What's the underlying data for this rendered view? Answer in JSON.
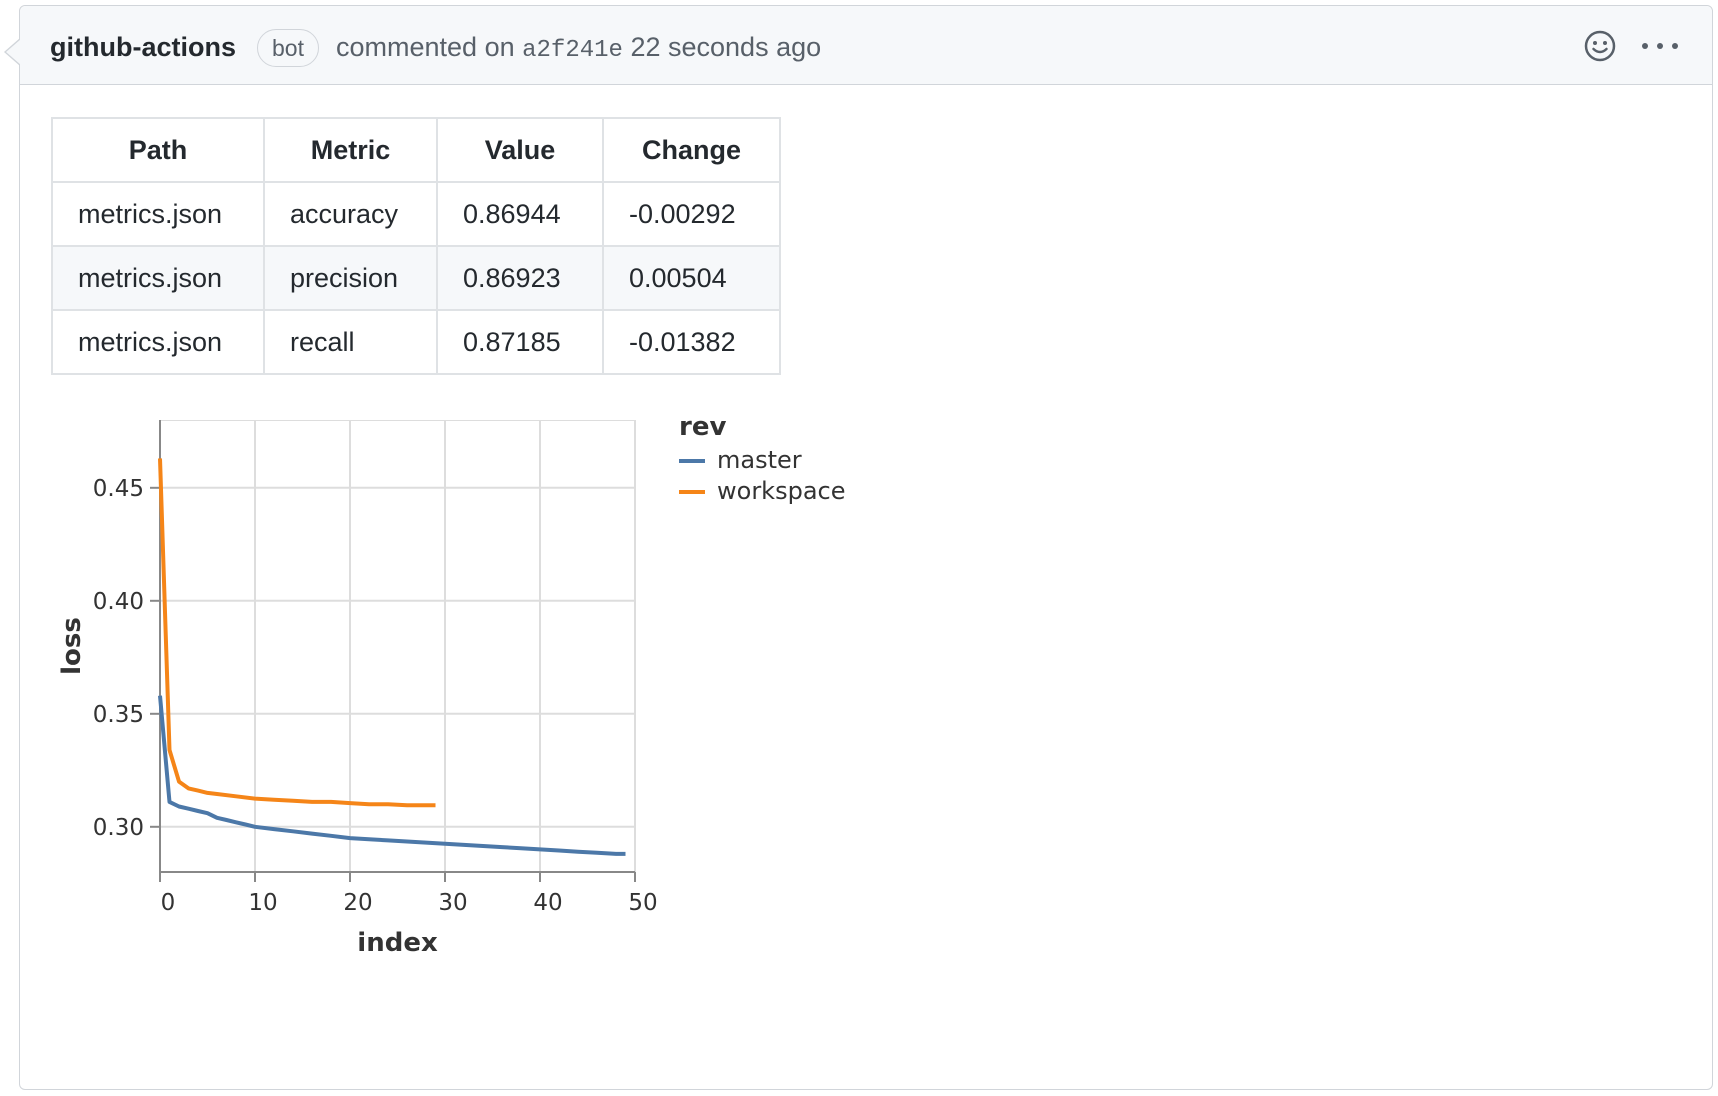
{
  "comment": {
    "author": "github-actions",
    "badge": "bot",
    "action_text": "commented on",
    "commit_sha": "a2f241e",
    "time_ago": "22 seconds ago",
    "icons": [
      "smiley-icon",
      "kebab-horizontal-icon"
    ]
  },
  "table": {
    "headers": [
      "Path",
      "Metric",
      "Value",
      "Change"
    ],
    "rows": [
      [
        "metrics.json",
        "accuracy",
        "0.86944",
        "-0.00292"
      ],
      [
        "metrics.json",
        "precision",
        "0.86923",
        "0.00504"
      ],
      [
        "metrics.json",
        "recall",
        "0.87185",
        "-0.01382"
      ]
    ]
  },
  "chart_data": {
    "type": "line",
    "xlabel": "index",
    "ylabel": "loss",
    "xlim": [
      0,
      50
    ],
    "ylim": [
      0.28,
      0.48
    ],
    "xticks": [
      0,
      10,
      20,
      30,
      40,
      50
    ],
    "yticks": [
      0.3,
      0.35,
      0.4,
      0.45
    ],
    "grid": true,
    "legend": {
      "title": "rev",
      "placement": "right"
    },
    "series": [
      {
        "name": "master",
        "color": "#4c78a8",
        "x": [
          0,
          1,
          2,
          3,
          4,
          5,
          6,
          7,
          8,
          9,
          10,
          12,
          14,
          16,
          18,
          20,
          22,
          24,
          26,
          28,
          30,
          32,
          34,
          36,
          38,
          40,
          42,
          44,
          46,
          48,
          49
        ],
        "y": [
          0.358,
          0.311,
          0.309,
          0.308,
          0.307,
          0.306,
          0.304,
          0.303,
          0.302,
          0.301,
          0.3,
          0.299,
          0.298,
          0.297,
          0.296,
          0.295,
          0.2945,
          0.294,
          0.2935,
          0.293,
          0.2925,
          0.292,
          0.2915,
          0.291,
          0.2905,
          0.29,
          0.2895,
          0.289,
          0.2885,
          0.288,
          0.288
        ]
      },
      {
        "name": "workspace",
        "color": "#f58518",
        "x": [
          0,
          1,
          2,
          3,
          4,
          5,
          6,
          8,
          10,
          12,
          14,
          16,
          18,
          20,
          22,
          24,
          26,
          28,
          29
        ],
        "y": [
          0.463,
          0.334,
          0.32,
          0.317,
          0.316,
          0.315,
          0.3145,
          0.3135,
          0.3125,
          0.312,
          0.3115,
          0.311,
          0.311,
          0.3105,
          0.31,
          0.31,
          0.3095,
          0.3095,
          0.3095
        ]
      }
    ]
  }
}
